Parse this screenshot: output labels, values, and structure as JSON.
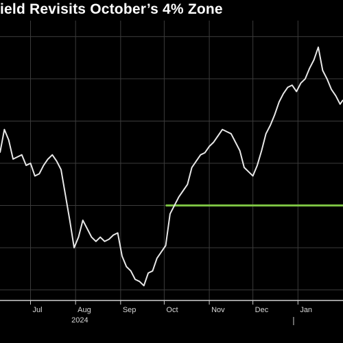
{
  "chart_data": {
    "type": "line",
    "title": "ield Revisits October’s 4% Zone",
    "xlabel": "",
    "ylabel": "",
    "x_ticks": [
      {
        "label": "Jul",
        "date": "2024-07-01"
      },
      {
        "label": "Aug",
        "date": "2024-08-01"
      },
      {
        "label": "Sep",
        "date": "2024-09-01"
      },
      {
        "label": "Oct",
        "date": "2024-10-01"
      },
      {
        "label": "Nov",
        "date": "2024-11-01"
      },
      {
        "label": "Dec",
        "date": "2024-12-01"
      },
      {
        "label": "Jan",
        "date": "2025-01-01"
      }
    ],
    "x_year_label": "2024",
    "xlim": [
      "2024-06-10",
      "2025-02-01"
    ],
    "ylim": [
      3.55,
      4.85
    ],
    "y_gridlines": [
      3.6,
      3.8,
      4.0,
      4.2,
      4.4,
      4.6,
      4.8
    ],
    "grid": true,
    "legend": "none",
    "series": [
      {
        "color": "#e8e8e8",
        "points": [
          [
            "2024-06-10",
            4.25
          ],
          [
            "2024-06-13",
            4.36
          ],
          [
            "2024-06-16",
            4.31
          ],
          [
            "2024-06-19",
            4.22
          ],
          [
            "2024-06-22",
            4.23
          ],
          [
            "2024-06-25",
            4.24
          ],
          [
            "2024-06-28",
            4.19
          ],
          [
            "2024-07-01",
            4.2
          ],
          [
            "2024-07-04",
            4.14
          ],
          [
            "2024-07-07",
            4.15
          ],
          [
            "2024-07-10",
            4.19
          ],
          [
            "2024-07-13",
            4.22
          ],
          [
            "2024-07-16",
            4.24
          ],
          [
            "2024-07-19",
            4.21
          ],
          [
            "2024-07-22",
            4.17
          ],
          [
            "2024-07-25",
            4.05
          ],
          [
            "2024-07-28",
            3.93
          ],
          [
            "2024-07-31",
            3.8
          ],
          [
            "2024-08-03",
            3.85
          ],
          [
            "2024-08-06",
            3.93
          ],
          [
            "2024-08-09",
            3.89
          ],
          [
            "2024-08-12",
            3.85
          ],
          [
            "2024-08-15",
            3.83
          ],
          [
            "2024-08-18",
            3.85
          ],
          [
            "2024-08-21",
            3.83
          ],
          [
            "2024-08-24",
            3.84
          ],
          [
            "2024-08-27",
            3.86
          ],
          [
            "2024-08-30",
            3.87
          ],
          [
            "2024-09-02",
            3.76
          ],
          [
            "2024-09-05",
            3.71
          ],
          [
            "2024-09-08",
            3.69
          ],
          [
            "2024-09-11",
            3.65
          ],
          [
            "2024-09-14",
            3.64
          ],
          [
            "2024-09-17",
            3.62
          ],
          [
            "2024-09-20",
            3.68
          ],
          [
            "2024-09-23",
            3.69
          ],
          [
            "2024-09-26",
            3.75
          ],
          [
            "2024-09-29",
            3.78
          ],
          [
            "2024-10-02",
            3.81
          ],
          [
            "2024-10-05",
            3.96
          ],
          [
            "2024-10-08",
            4.0
          ],
          [
            "2024-10-11",
            4.04
          ],
          [
            "2024-10-14",
            4.07
          ],
          [
            "2024-10-17",
            4.1
          ],
          [
            "2024-10-20",
            4.18
          ],
          [
            "2024-10-23",
            4.21
          ],
          [
            "2024-10-26",
            4.24
          ],
          [
            "2024-10-29",
            4.25
          ],
          [
            "2024-11-01",
            4.28
          ],
          [
            "2024-11-04",
            4.3
          ],
          [
            "2024-11-07",
            4.33
          ],
          [
            "2024-11-10",
            4.36
          ],
          [
            "2024-11-13",
            4.35
          ],
          [
            "2024-11-16",
            4.34
          ],
          [
            "2024-11-19",
            4.3
          ],
          [
            "2024-11-22",
            4.26
          ],
          [
            "2024-11-25",
            4.18
          ],
          [
            "2024-11-28",
            4.16
          ],
          [
            "2024-12-01",
            4.14
          ],
          [
            "2024-12-04",
            4.19
          ],
          [
            "2024-12-07",
            4.26
          ],
          [
            "2024-12-10",
            4.34
          ],
          [
            "2024-12-13",
            4.38
          ],
          [
            "2024-12-16",
            4.43
          ],
          [
            "2024-12-19",
            4.49
          ],
          [
            "2024-12-22",
            4.53
          ],
          [
            "2024-12-25",
            4.56
          ],
          [
            "2024-12-28",
            4.57
          ],
          [
            "2024-12-31",
            4.54
          ],
          [
            "2025-01-03",
            4.58
          ],
          [
            "2025-01-06",
            4.6
          ],
          [
            "2025-01-09",
            4.65
          ],
          [
            "2025-01-12",
            4.69
          ],
          [
            "2025-01-15",
            4.75
          ],
          [
            "2025-01-18",
            4.64
          ],
          [
            "2025-01-21",
            4.6
          ],
          [
            "2025-01-24",
            4.55
          ],
          [
            "2025-01-27",
            4.52
          ],
          [
            "2025-01-30",
            4.48
          ],
          [
            "2025-02-01",
            4.5
          ]
        ]
      }
    ],
    "reference_line": {
      "color": "#7cc242",
      "y": 4.0,
      "x_start": "2024-10-02",
      "x_end": "2025-02-01"
    },
    "colors": {
      "background": "#000000",
      "grid": "#3c3c3c",
      "axis": "#d0d0d0",
      "line": "#e8e8e8",
      "accent": "#7cc242"
    }
  }
}
